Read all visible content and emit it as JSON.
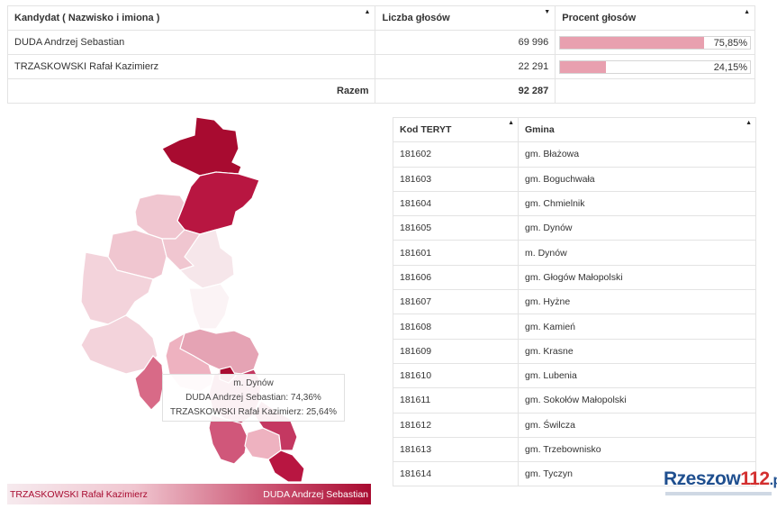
{
  "results": {
    "headers": {
      "candidate": "Kandydat ( Nazwisko i imiona )",
      "votes": "Liczba głosów",
      "percent": "Procent głosów"
    },
    "rows": [
      {
        "name": "DUDA Andrzej Sebastian",
        "votes": "69 996",
        "percent_label": "75,85%",
        "percent": 75.85
      },
      {
        "name": "TRZASKOWSKI Rafał Kazimierz",
        "votes": "22 291",
        "percent_label": "24,15%",
        "percent": 24.15
      }
    ],
    "total_label": "Razem",
    "total_votes": "92 287"
  },
  "teryt": {
    "headers": {
      "code": "Kod TERYT",
      "gmina": "Gmina"
    },
    "rows": [
      {
        "code": "181602",
        "gmina": "gm. Błażowa"
      },
      {
        "code": "181603",
        "gmina": "gm. Boguchwała"
      },
      {
        "code": "181604",
        "gmina": "gm. Chmielnik"
      },
      {
        "code": "181605",
        "gmina": "gm. Dynów"
      },
      {
        "code": "181601",
        "gmina": "m. Dynów"
      },
      {
        "code": "181606",
        "gmina": "gm. Głogów Małopolski"
      },
      {
        "code": "181607",
        "gmina": "gm. Hyżne"
      },
      {
        "code": "181608",
        "gmina": "gm. Kamień"
      },
      {
        "code": "181609",
        "gmina": "gm. Krasne"
      },
      {
        "code": "181610",
        "gmina": "gm. Lubenia"
      },
      {
        "code": "181611",
        "gmina": "gm. Sokołów Małopolski"
      },
      {
        "code": "181612",
        "gmina": "gm. Świlcza"
      },
      {
        "code": "181613",
        "gmina": "gm. Trzebownisko"
      },
      {
        "code": "181614",
        "gmina": "gm. Tyczyn"
      }
    ]
  },
  "tooltip": {
    "title": "m. Dynów",
    "line1": "DUDA Andrzej Sebastian: 74,36%",
    "line2": "TRZASKOWSKI Rafał Kazimierz: 25,64%"
  },
  "legend": {
    "left": "TRZASKOWSKI Rafał Kazimierz",
    "right": "DUDA Andrzej Sebastian"
  },
  "logo": {
    "part1": "Rzeszow",
    "part2": "112",
    "part3": ".pl"
  },
  "colors": {
    "accent": "#a80b30",
    "bar": "#e8a0af"
  }
}
